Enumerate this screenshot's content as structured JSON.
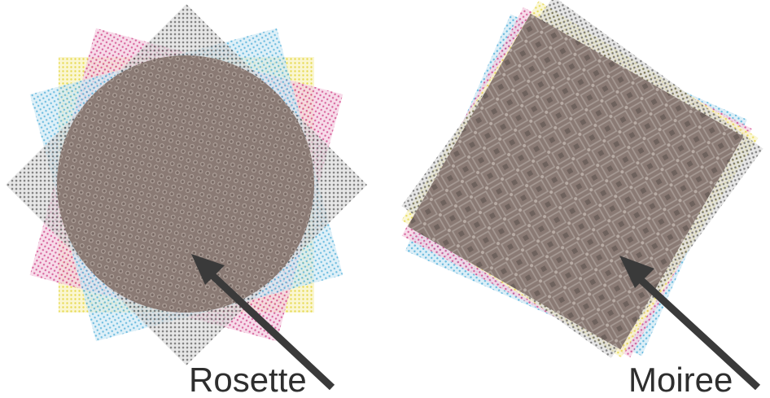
{
  "figures": [
    {
      "id": "rosette",
      "label": "Rosette",
      "screens": [
        {
          "ink": "yellow",
          "color": "#e6d84a",
          "angle_deg": 0
        },
        {
          "ink": "magenta",
          "color": "#cf3f86",
          "angle_deg": 15
        },
        {
          "ink": "cyan",
          "color": "#3fa7d6",
          "angle_deg": 75
        },
        {
          "ink": "black",
          "color": "#4a4a4a",
          "angle_deg": 45
        }
      ],
      "arrow_color": "#3a3a3a"
    },
    {
      "id": "moiree",
      "label": "Moiree",
      "screens": [
        {
          "ink": "cyan",
          "color": "#3fa7d6",
          "angle_deg": 24
        },
        {
          "ink": "magenta",
          "color": "#cf3f86",
          "angle_deg": 28
        },
        {
          "ink": "yellow",
          "color": "#e6d84a",
          "angle_deg": 32
        },
        {
          "ink": "black",
          "color": "#4a4a4a",
          "angle_deg": 36
        }
      ],
      "arrow_color": "#3a3a3a"
    }
  ],
  "overlap_color": "#8a7a74"
}
